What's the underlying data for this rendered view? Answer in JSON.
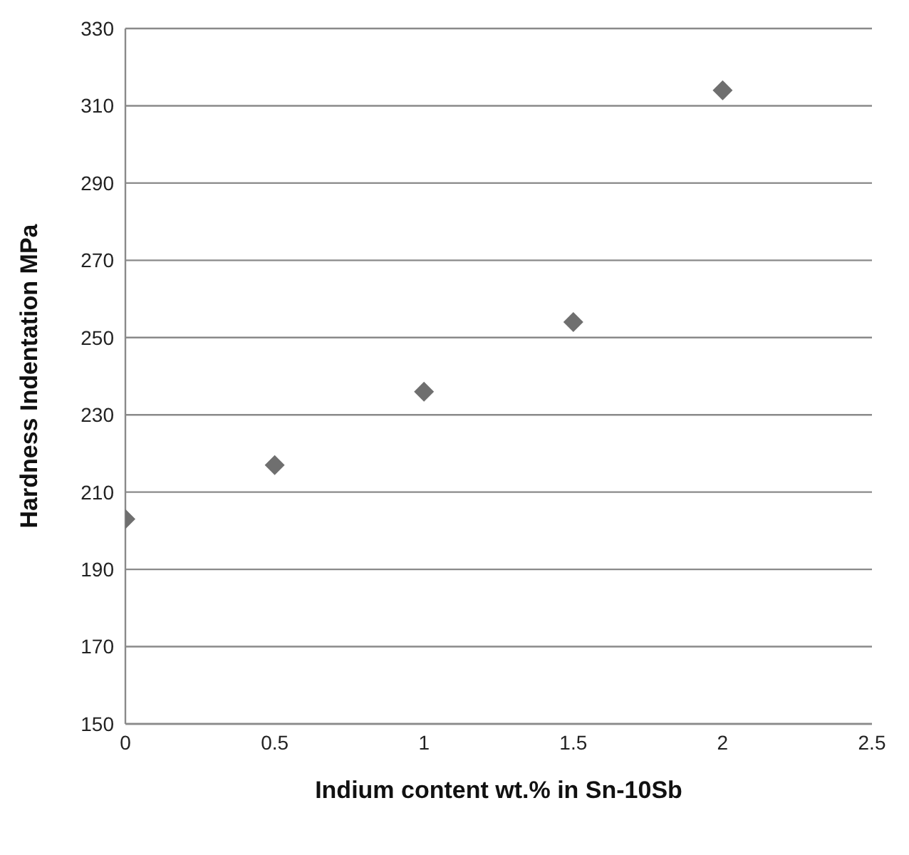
{
  "chart_data": {
    "type": "scatter",
    "xlabel": "Indium content wt.% in Sn-10Sb",
    "ylabel": "Hardness Indentation MPa",
    "x": [
      0,
      0.5,
      1,
      1.5,
      2
    ],
    "values": [
      203,
      217,
      236,
      254,
      314
    ],
    "color": "#6f6f6f",
    "marker": "diamond",
    "grid": "y",
    "xlim": [
      0,
      2.5
    ],
    "xticks": [
      0,
      0.5,
      1,
      1.5,
      2,
      2.5
    ],
    "ylim": [
      150,
      330
    ],
    "yticks": [
      150,
      170,
      190,
      210,
      230,
      250,
      270,
      290,
      310,
      330
    ]
  }
}
